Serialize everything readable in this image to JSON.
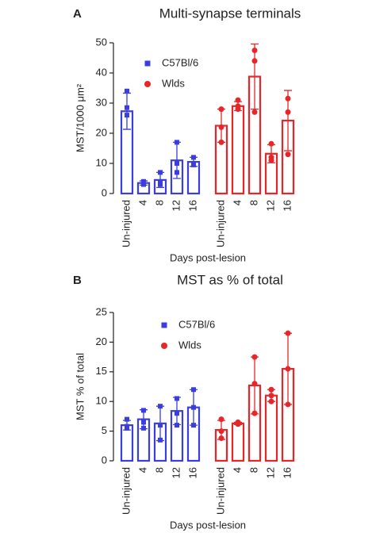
{
  "chart_data": [
    {
      "type": "bar",
      "panel_label": "A",
      "title": "Multi-synapse terminals",
      "y_label": "MST/1000 μm²",
      "x_label": "Days post-lesion",
      "categories": [
        "Un-injured",
        "4",
        "8",
        "12",
        "16"
      ],
      "ylim": [
        0,
        50
      ],
      "yticks": [
        0,
        10,
        20,
        30,
        40,
        50
      ],
      "series": [
        {
          "name": "C57Bl/6",
          "color": "#3a3de0",
          "marker": "square",
          "values": [
            27.3,
            3.5,
            4.5,
            11,
            10.5
          ],
          "errors": [
            6,
            0.7,
            2.5,
            6,
            1.5
          ],
          "points": [
            [
              34,
              28.5,
              26
            ],
            [
              3.5,
              3,
              4
            ],
            [
              7,
              3.5,
              3
            ],
            [
              17,
              10,
              7
            ],
            [
              12,
              10,
              9.5
            ]
          ]
        },
        {
          "name": "Wlds",
          "color": "#e8262a",
          "marker": "circle",
          "values": [
            22.5,
            29,
            38.8,
            13.2,
            24.2
          ],
          "errors": [
            5.5,
            1.5,
            10.8,
            3,
            10
          ],
          "points": [
            [
              28,
              22,
              17
            ],
            [
              31,
              29,
              28
            ],
            [
              47.5,
              44,
              27
            ],
            [
              16.5,
              12,
              11
            ],
            [
              31.5,
              27,
              13
            ]
          ]
        }
      ]
    },
    {
      "type": "bar",
      "panel_label": "B",
      "title": "MST as % of total",
      "y_label": "MST % of total",
      "x_label": "Days post-lesion",
      "categories": [
        "Un-injured",
        "4",
        "8",
        "12",
        "16"
      ],
      "ylim": [
        0,
        25
      ],
      "yticks": [
        0,
        5,
        10,
        15,
        20,
        25
      ],
      "series": [
        {
          "name": "C57Bl/6",
          "color": "#3a3de0",
          "marker": "square",
          "values": [
            6,
            7,
            6.3,
            8.4,
            9
          ],
          "errors": [
            0.8,
            1.6,
            2.9,
            2.3,
            3
          ],
          "points": [
            [
              7,
              5.5,
              5.8
            ],
            [
              8.5,
              6.5,
              5.5
            ],
            [
              9.2,
              6,
              3.5
            ],
            [
              10.5,
              8,
              6
            ],
            [
              12,
              9,
              6
            ]
          ]
        },
        {
          "name": "Wlds",
          "color": "#e8262a",
          "marker": "circle",
          "values": [
            5.2,
            6.3,
            12.7,
            11,
            15.5
          ],
          "errors": [
            1.6,
            0.2,
            4.8,
            1,
            6
          ],
          "points": [
            [
              7,
              5,
              3.8
            ],
            [
              6.5,
              6.2,
              6.2
            ],
            [
              17.5,
              13,
              8
            ],
            [
              12,
              11,
              10
            ],
            [
              21.5,
              15.5,
              9.5
            ]
          ]
        }
      ]
    }
  ]
}
